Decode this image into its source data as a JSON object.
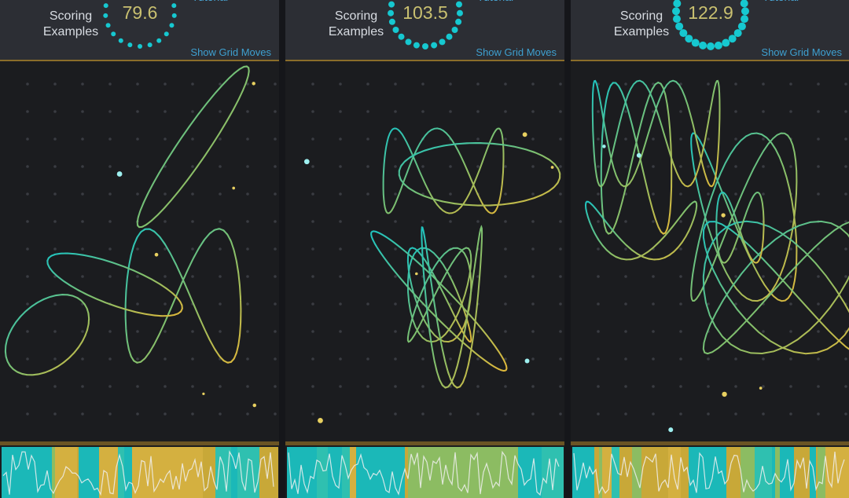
{
  "panels": [
    {
      "tutorial": "Tutorial",
      "label": "Scoring Examples",
      "score": 79.6,
      "link": "Show Grid Moves"
    },
    {
      "tutorial": "Tutorial",
      "label": "Scoring Examples",
      "score": 103.5,
      "link": "Show Grid Moves"
    },
    {
      "tutorial": "Tutorial",
      "label": "Scoring Examples",
      "score": 122.9,
      "link": "Show Grid Moves"
    }
  ]
}
